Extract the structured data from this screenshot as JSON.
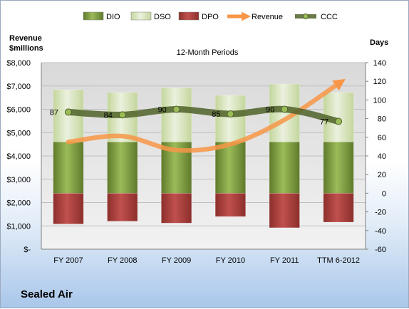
{
  "company": "Sealed Air",
  "chart_data": {
    "type": "bar",
    "title": "12-Month Periods",
    "categories": [
      "FY 2007",
      "FY 2008",
      "FY 2009",
      "FY 2010",
      "FY 2011",
      "TTM 6-2012"
    ],
    "stacked": true,
    "series": [
      {
        "name": "DIO",
        "axis": "right",
        "color": "#77933c",
        "values": [
          55,
          55,
          55,
          55,
          55,
          55
        ]
      },
      {
        "name": "DSO",
        "axis": "right",
        "color": "#d7e4bd",
        "values": [
          56,
          53,
          58,
          50,
          62,
          53
        ]
      },
      {
        "name": "DPO",
        "axis": "right",
        "color": "#c0504d",
        "values": [
          -33,
          -30,
          -32,
          -25,
          -37,
          -31
        ]
      },
      {
        "name": "Revenue",
        "axis": "left",
        "type": "line",
        "color": "#f79646",
        "values": [
          4600,
          4850,
          4250,
          4500,
          5550,
          7100
        ]
      },
      {
        "name": "CCC",
        "axis": "right",
        "type": "line",
        "color": "#4f6228",
        "values": [
          87,
          84,
          90,
          85,
          90,
          77
        ],
        "data_labels": [
          "87",
          "84",
          "90",
          "85",
          "90",
          "77"
        ]
      }
    ],
    "left_axis": {
      "title": "Revenue\n$millions",
      "min": 0,
      "max": 8000,
      "step": 1000,
      "tick_labels": [
        "$-",
        "$1,000",
        "$2,000",
        "$3,000",
        "$4,000",
        "$5,000",
        "$6,000",
        "$7,000",
        "$8,000"
      ]
    },
    "right_axis": {
      "title": "Days",
      "min": -60,
      "max": 140,
      "step": 20,
      "tick_labels": [
        "-60",
        "-40",
        "-20",
        "0",
        "20",
        "40",
        "60",
        "80",
        "100",
        "120",
        "140"
      ]
    },
    "legend_position": "top"
  }
}
